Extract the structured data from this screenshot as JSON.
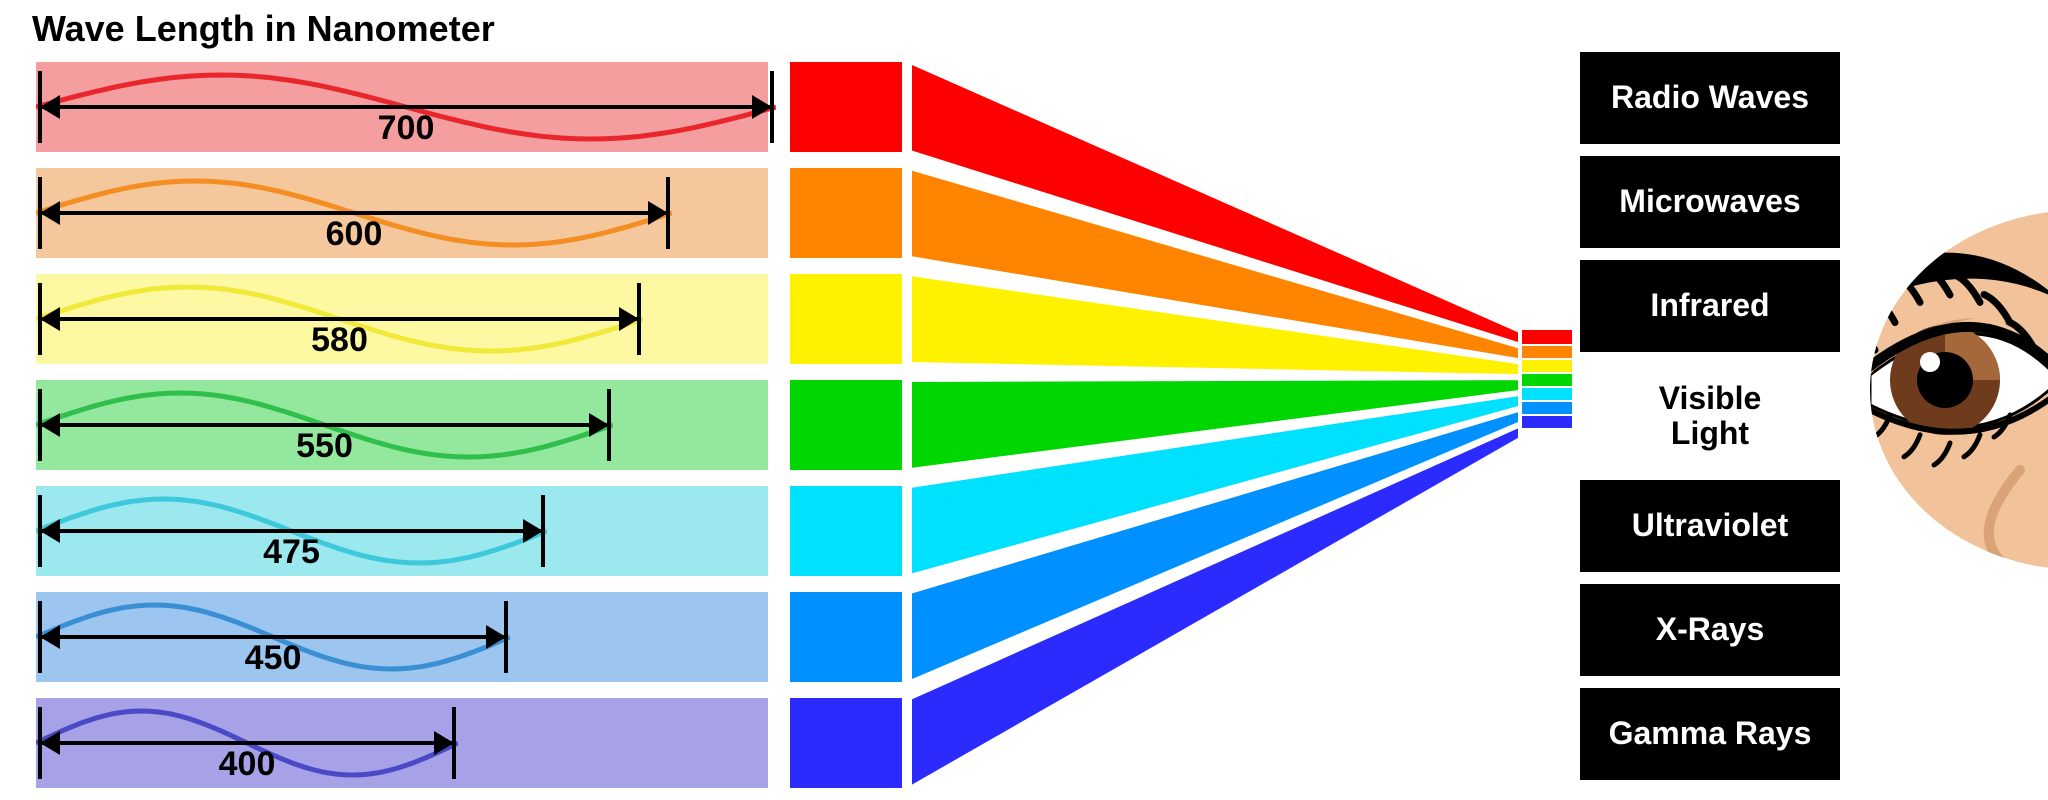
{
  "title": "Wave Length in Nanometer",
  "title_fontsize": 36,
  "background_color": "#ffffff",
  "border_color": "#ffffff",
  "wavelength_bars": [
    {
      "value": 700,
      "light_color": "#f59ea0",
      "solid_color": "#ff0000",
      "wave_stroke": "#e8262c",
      "wave_width_ratio": 1.0
    },
    {
      "value": 600,
      "light_color": "#f5c79c",
      "solid_color": "#ff8500",
      "wave_stroke": "#f58e22",
      "wave_width_ratio": 0.86
    },
    {
      "value": 580,
      "light_color": "#fdf8a2",
      "solid_color": "#fff200",
      "wave_stroke": "#f1e93a",
      "wave_width_ratio": 0.82
    },
    {
      "value": 550,
      "light_color": "#93e89d",
      "solid_color": "#00d600",
      "wave_stroke": "#2fbf4a",
      "wave_width_ratio": 0.78
    },
    {
      "value": 475,
      "light_color": "#9ce8ef",
      "solid_color": "#00e0ff",
      "wave_stroke": "#3dc9db",
      "wave_width_ratio": 0.69
    },
    {
      "value": 450,
      "light_color": "#9cc5ef",
      "solid_color": "#0090ff",
      "wave_stroke": "#3a8fd4",
      "wave_width_ratio": 0.64
    },
    {
      "value": 400,
      "light_color": "#a7a2e8",
      "solid_color": "#2b2bff",
      "wave_stroke": "#4a49c6",
      "wave_width_ratio": 0.57
    }
  ],
  "bar_fontsize": 34,
  "em_spectrum": [
    {
      "label": "Radio Waves",
      "bg": "#000000",
      "fg": "#ffffff"
    },
    {
      "label": "Microwaves",
      "bg": "#000000",
      "fg": "#ffffff"
    },
    {
      "label": "Infrared",
      "bg": "#000000",
      "fg": "#ffffff"
    },
    {
      "label": "Visible Light",
      "bg": "#ffffff",
      "fg": "#000000",
      "visible": true
    },
    {
      "label": "Ultraviolet",
      "bg": "#000000",
      "fg": "#ffffff"
    },
    {
      "label": "X-Rays",
      "bg": "#000000",
      "fg": "#ffffff"
    },
    {
      "label": "Gamma Rays",
      "bg": "#000000",
      "fg": "#ffffff"
    }
  ],
  "em_fontsize": 32,
  "eye": {
    "skin_color": "#f2c39a",
    "skin_shadow": "#d9a377",
    "iris_color": "#6e3b1c",
    "iris_highlight": "#a5683a",
    "pupil_color": "#000000",
    "sclera_color": "#ffffff",
    "lash_color": "#000000"
  }
}
